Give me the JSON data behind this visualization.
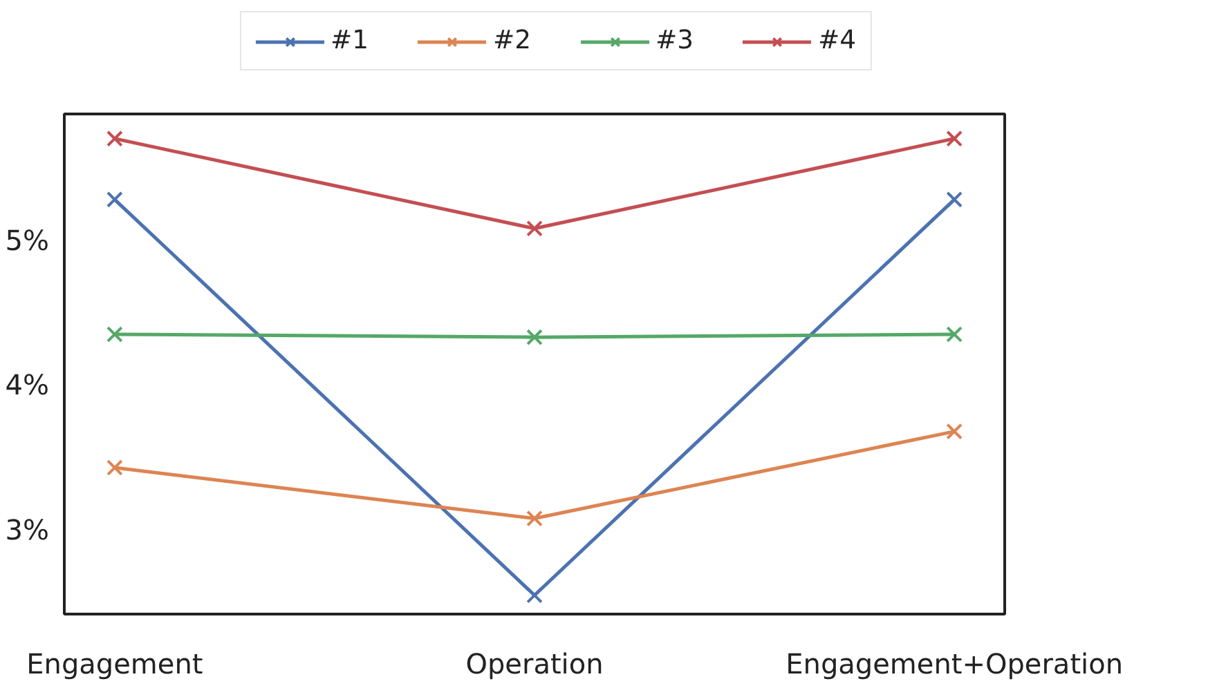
{
  "chart_data": {
    "type": "line",
    "categories": [
      "Engagement",
      "Operation",
      "Engagement+Operation"
    ],
    "series": [
      {
        "name": "#1",
        "color": "#4c72b0",
        "values": [
          5.28,
          2.55,
          5.28
        ]
      },
      {
        "name": "#2",
        "color": "#dd8452",
        "values": [
          3.43,
          3.08,
          3.68
        ]
      },
      {
        "name": "#3",
        "color": "#55a868",
        "values": [
          4.35,
          4.33,
          4.35
        ]
      },
      {
        "name": "#4",
        "color": "#c44e52",
        "values": [
          5.7,
          5.08,
          5.7
        ]
      }
    ],
    "ylim": [
      2.42,
      5.87
    ],
    "yticks": [
      {
        "value": 3,
        "label": "3%"
      },
      {
        "value": 4,
        "label": "4%"
      },
      {
        "value": 5,
        "label": "5%"
      }
    ],
    "marker": "cross",
    "line_style": "solid",
    "grid": false,
    "legend": "top"
  }
}
